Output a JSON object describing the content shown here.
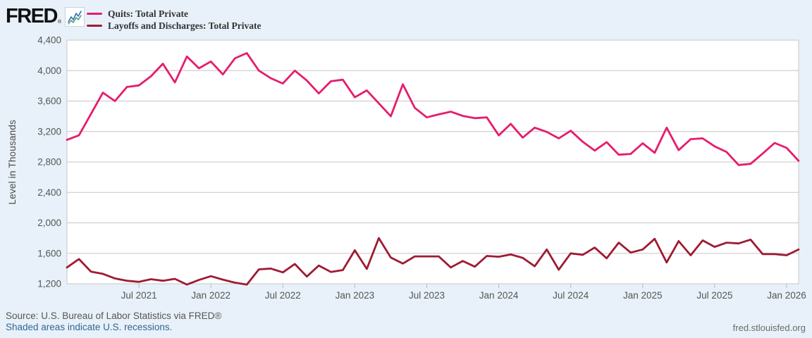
{
  "logo": {
    "text": "FRED",
    "registered": "®"
  },
  "chart_data": {
    "type": "line",
    "ylabel": "Level in Thousands",
    "ylim": [
      1200,
      4400
    ],
    "yticks": [
      1200,
      1600,
      2000,
      2400,
      2800,
      3200,
      3600,
      4000,
      4400
    ],
    "grid": "horizontal",
    "legend_position": "top-left",
    "x_start": "Jan 2021",
    "x_end": "Feb 2026",
    "x": [
      "2021-01",
      "2021-02",
      "2021-03",
      "2021-04",
      "2021-05",
      "2021-06",
      "2021-07",
      "2021-08",
      "2021-09",
      "2021-10",
      "2021-11",
      "2021-12",
      "2022-01",
      "2022-02",
      "2022-03",
      "2022-04",
      "2022-05",
      "2022-06",
      "2022-07",
      "2022-08",
      "2022-09",
      "2022-10",
      "2022-11",
      "2022-12",
      "2023-01",
      "2023-02",
      "2023-03",
      "2023-04",
      "2023-05",
      "2023-06",
      "2023-07",
      "2023-08",
      "2023-09",
      "2023-10",
      "2023-11",
      "2023-12",
      "2024-01",
      "2024-02",
      "2024-03",
      "2024-04",
      "2024-05",
      "2024-06",
      "2024-07",
      "2024-08",
      "2024-09",
      "2024-10",
      "2024-11",
      "2024-12",
      "2025-01",
      "2025-02",
      "2025-03",
      "2025-04",
      "2025-05",
      "2025-06",
      "2025-07",
      "2025-08",
      "2025-09",
      "2025-10",
      "2025-11",
      "2025-12",
      "2026-01",
      "2026-02"
    ],
    "xtick_labels": [
      "Jul 2021",
      "Jan 2022",
      "Jul 2022",
      "Jan 2023",
      "Jul 2023",
      "Jan 2024",
      "Jul 2024",
      "Jan 2025",
      "Jul 2025",
      "Jan 2026"
    ],
    "xtick_month_indices": [
      6,
      12,
      18,
      24,
      30,
      36,
      42,
      48,
      54,
      60
    ],
    "series": [
      {
        "name": "Quits: Total Private",
        "color": "#e61c6e",
        "values": [
          3090,
          3150,
          3430,
          3710,
          3600,
          3785,
          3805,
          3925,
          4090,
          3845,
          4185,
          4030,
          4120,
          3950,
          4160,
          4230,
          4000,
          3900,
          3830,
          4000,
          3870,
          3700,
          3860,
          3880,
          3650,
          3740,
          3570,
          3400,
          3820,
          3510,
          3385,
          3425,
          3460,
          3405,
          3375,
          3385,
          3150,
          3300,
          3120,
          3250,
          3195,
          3110,
          3210,
          3065,
          2950,
          3060,
          2895,
          2905,
          3045,
          2920,
          3250,
          2955,
          3100,
          3110,
          3005,
          2930,
          2760,
          2775,
          2910,
          3050,
          2985,
          2815
        ]
      },
      {
        "name": "Layoffs and Discharges: Total Private",
        "color": "#9e1b32",
        "values": [
          1415,
          1525,
          1360,
          1330,
          1270,
          1240,
          1225,
          1260,
          1240,
          1265,
          1190,
          1250,
          1300,
          1255,
          1215,
          1190,
          1390,
          1400,
          1350,
          1460,
          1295,
          1440,
          1355,
          1380,
          1640,
          1395,
          1800,
          1545,
          1465,
          1560,
          1560,
          1560,
          1415,
          1500,
          1425,
          1565,
          1555,
          1585,
          1540,
          1430,
          1650,
          1385,
          1600,
          1580,
          1675,
          1535,
          1740,
          1610,
          1650,
          1790,
          1480,
          1760,
          1575,
          1770,
          1685,
          1740,
          1730,
          1780,
          1590,
          1590,
          1575,
          1650
        ]
      }
    ]
  },
  "footer": {
    "source": "Source: U.S. Bureau of Labor Statistics via FRED®",
    "recessions_note": "Shaded areas indicate U.S. recessions.",
    "site": "fred.stlouisfed.org"
  },
  "colors": {
    "page_background": "#e8f1f9",
    "plot_background": "#ffffff",
    "gridline": "#c6c6c6",
    "axis_text": "#555555",
    "link_blue": "#2f6795"
  }
}
